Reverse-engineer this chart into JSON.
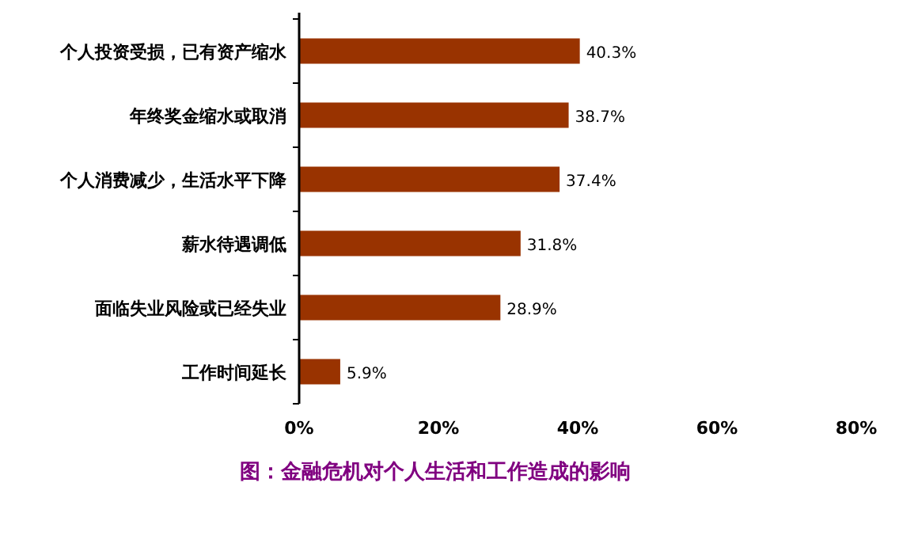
{
  "chart_data": {
    "type": "bar",
    "orientation": "horizontal",
    "title": "图：金融危机对个人生活和工作造成的影响",
    "categories": [
      "个人投资受损，已有资产缩水",
      "年终奖金缩水或取消",
      "个人消费减少，生活水平下降",
      "薪水待遇调低",
      "面临失业风险或已经失业",
      "工作时间延长"
    ],
    "values": [
      40.3,
      38.7,
      37.4,
      31.8,
      28.9,
      5.9
    ],
    "value_labels": [
      "40.3%",
      "38.7%",
      "37.4%",
      "31.8%",
      "28.9%",
      "5.9%"
    ],
    "color": "#993300",
    "xlim": [
      0,
      80
    ],
    "xticks": [
      {
        "value": 0,
        "label": "0%"
      },
      {
        "value": 20,
        "label": "20%"
      },
      {
        "value": 40,
        "label": "40%"
      },
      {
        "value": 60,
        "label": "60%"
      },
      {
        "value": 80,
        "label": "80%"
      }
    ]
  }
}
